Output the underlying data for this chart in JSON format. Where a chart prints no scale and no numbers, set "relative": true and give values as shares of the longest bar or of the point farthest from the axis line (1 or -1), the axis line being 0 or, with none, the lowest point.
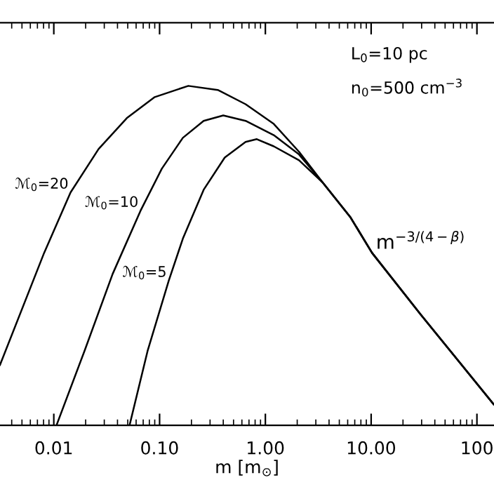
{
  "chart_data": {
    "type": "line",
    "relative": true,
    "log": "x",
    "xlabel": "m [m$_{⊙}$]",
    "xlim": [
      0.0031,
      145
    ],
    "xticks": [
      {
        "value": 0.01,
        "label": "0.01"
      },
      {
        "value": 0.1,
        "label": "0.10"
      },
      {
        "value": 1,
        "label": "1.00"
      },
      {
        "value": 10,
        "label": "10.00"
      },
      {
        "value": 100,
        "label": "100"
      }
    ],
    "grid": false,
    "legend": false,
    "marker": "none",
    "line_style": "solid",
    "annotations": [
      "L$_{0}$=10 pc",
      "n$_{0}$=500 cm$^{−3}$",
      {
        "text": "m$^{−3/(4−β)}$",
        "x": 10.2,
        "y": 0.508
      }
    ],
    "series": [
      {
        "name": "ℳ$_{0}$=20",
        "color": "#000000",
        "x": [
          0.0031,
          0.0081,
          0.0144,
          0.0265,
          0.049,
          0.09,
          0.187,
          0.355,
          0.65,
          1.2,
          2.08,
          3.49,
          6.4,
          10.2,
          29.5,
          144
        ],
        "values": [
          0.178,
          0.508,
          0.686,
          0.814,
          0.905,
          0.967,
          1.0,
          0.988,
          0.946,
          0.888,
          0.806,
          0.715,
          0.612,
          0.508,
          0.326,
          0.062
        ]
      },
      {
        "name": "ℳ$_{0}$=10",
        "color": "#000000",
        "x": [
          0.0106,
          0.0195,
          0.036,
          0.066,
          0.105,
          0.166,
          0.261,
          0.4,
          0.65,
          1.2,
          2.08,
          3.49,
          6.4,
          10.2,
          29.5,
          144
        ],
        "values": [
          0,
          0.219,
          0.446,
          0.632,
          0.756,
          0.847,
          0.897,
          0.913,
          0.897,
          0.855,
          0.798,
          0.715,
          0.612,
          0.508,
          0.326,
          0.062
        ]
      },
      {
        "name": "ℳ$_{0}$=5",
        "color": "#000000",
        "x": [
          0.052,
          0.077,
          0.122,
          0.166,
          0.261,
          0.413,
          0.65,
          0.83,
          1.2,
          2.08,
          3.49,
          6.4,
          10.2,
          29.5,
          144
        ],
        "values": [
          0,
          0.219,
          0.426,
          0.55,
          0.694,
          0.789,
          0.835,
          0.843,
          0.822,
          0.781,
          0.715,
          0.612,
          0.508,
          0.326,
          0.062
        ]
      }
    ]
  }
}
